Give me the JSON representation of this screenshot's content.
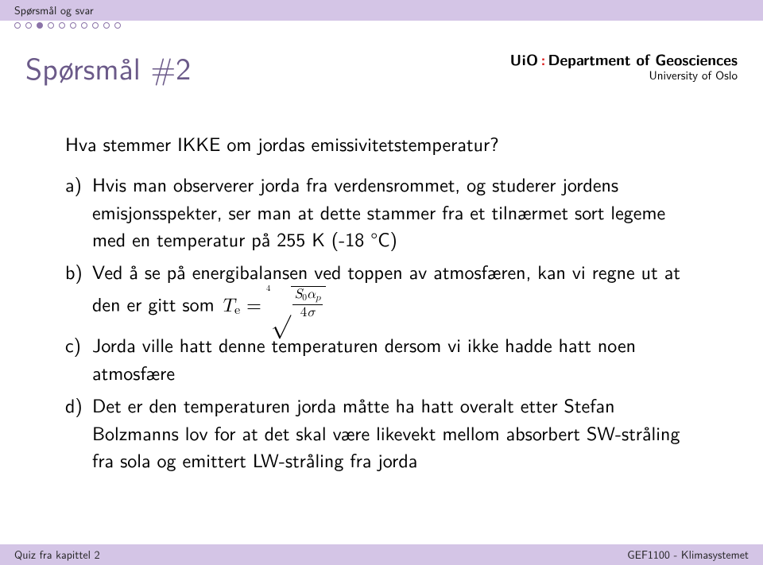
{
  "colors": {
    "band_bg": "#d4c5e6",
    "title_color": "#6b5a89",
    "dot_border": "#8b73a8",
    "dot_fill": "#8b73a8",
    "logo_colon": "#d22"
  },
  "fontsizes_pt": {
    "title": 28,
    "body": 18,
    "footer": 10,
    "topband": 10
  },
  "header": {
    "section_label": "Spørsmål og svar",
    "dots": {
      "count": 10,
      "current_index": 2
    }
  },
  "logo": {
    "uio": "UiO",
    "colon": ":",
    "dept": "Department of Geosciences",
    "sub": "University of Oslo"
  },
  "title": "Spørsmål #2",
  "question": "Hva stemmer IKKE om jordas emissivitetstemperatur?",
  "options": {
    "a": {
      "marker": "a)",
      "text": "Hvis man observerer jorda fra verdensrommet, og studerer jordens emisjonsspekter, ser man at dette stammer fra et tilnærmet sort legeme med en temperatur på 255 K (-18 °C)"
    },
    "b": {
      "marker": "b)",
      "text_prefix": "Ved å se på energibalansen ved toppen av atmosfæren, kan vi regne ut at den er gitt som ",
      "formula": {
        "lhs_var": "T",
        "lhs_sub": "e",
        "eq": " = ",
        "root_index": "4",
        "numerator": {
          "S_var": "S",
          "S_sub": "0",
          "alpha": "α",
          "p_sub": "p"
        },
        "denominator": {
          "four": "4",
          "sigma": "σ"
        }
      }
    },
    "c": {
      "marker": "c)",
      "text": "Jorda ville hatt denne temperaturen dersom vi ikke hadde hatt noen atmosfære"
    },
    "d": {
      "marker": "d)",
      "text": "Det er den temperaturen jorda måtte ha hatt overalt etter Stefan Bolzmanns lov for at det skal være likevekt mellom absorbert SW-stråling fra sola og emittert LW-stråling fra jorda"
    }
  },
  "footer": {
    "left": "Quiz fra kapittel 2",
    "right": "GEF1100 - Klimasystemet"
  }
}
